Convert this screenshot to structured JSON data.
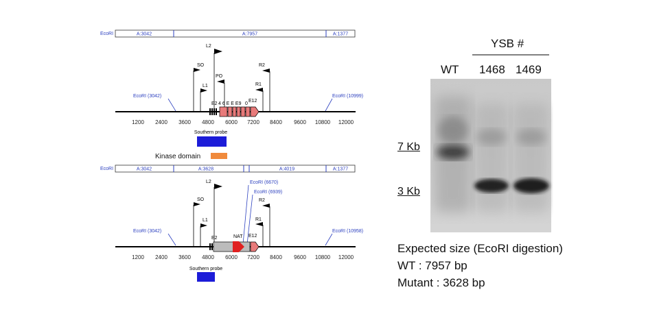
{
  "colors": {
    "blue": "#2b3fbf",
    "probe": "#1c1cd8",
    "kinase": "#f08a3c",
    "exon": "#e87a7a",
    "nat": "#e02020",
    "cassette": "#bcbcbc"
  },
  "icons": [
    "primer-flag-icon",
    "arrow-icon"
  ],
  "wildtype_map": {
    "enzyme_label": "EcoRI",
    "fragments": [
      "A:3042",
      "A:7957",
      "A:1377"
    ],
    "sites": [
      "EcoRI (3042)",
      "EcoRI (10999)"
    ],
    "primers": [
      "L2",
      "SO",
      "PO",
      "L1",
      "R2",
      "R1"
    ],
    "exon_label_left": "E2",
    "exon_label_mid": "4 6 E E E9",
    "exon_label_right": "E12",
    "exon_label_0": "0",
    "ticks": [
      "1200",
      "2400",
      "3600",
      "4800",
      "6000",
      "7200",
      "8400",
      "9600",
      "10800",
      "12000"
    ],
    "probe_label": "Southern probe",
    "kinase_label": "Kinase domain"
  },
  "mutant_map": {
    "enzyme_label": "EcoRI",
    "fragments": [
      "A:3042",
      "A:3628",
      "A:4019",
      "A:1377"
    ],
    "sites": [
      "EcoRI (3042)",
      "EcoRI (6670)",
      "EcoRI (6939)",
      "EcoRI (10958)"
    ],
    "primers": [
      "L2",
      "SO",
      "L1",
      "R2",
      "R1"
    ],
    "exon_label_left": "E2",
    "cassette_label": "NAT",
    "exon_label_right": "E12",
    "ticks": [
      "1200",
      "2400",
      "3600",
      "4800",
      "6000",
      "7200",
      "8400",
      "9600",
      "10800",
      "12000"
    ],
    "probe_label": "Southern probe"
  },
  "gel": {
    "group_label": "YSB #",
    "lanes": [
      "WT",
      "1468",
      "1469"
    ],
    "markers": [
      "7 Kb",
      "3 Kb"
    ]
  },
  "expected": {
    "title": "Expected size (EcoRI digestion)",
    "wt": "WT : 7957 bp",
    "mutant": "Mutant : 3628 bp"
  }
}
